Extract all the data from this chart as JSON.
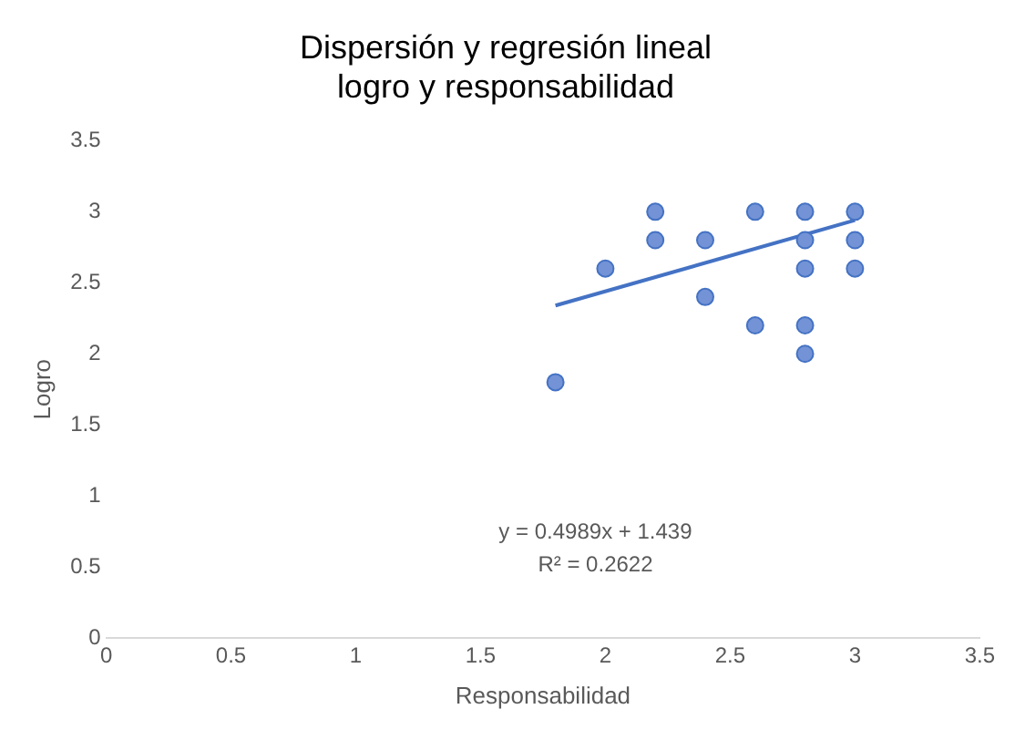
{
  "chart_data": {
    "type": "scatter",
    "title": "Dispersión y regresión lineal",
    "subtitle": "logro y responsabilidad",
    "xlabel": "Responsabilidad",
    "ylabel": "Logro",
    "series": [
      {
        "marker": "circle",
        "color": "#7393d6",
        "x": [
          1.8,
          2,
          2.2,
          2.2,
          2.4,
          2.4,
          2.6,
          2.6,
          2.8,
          2.8,
          2.8,
          2.8,
          2.8,
          3,
          3,
          3
        ],
        "values": [
          1.8,
          2.6,
          3,
          2.8,
          2.8,
          2.4,
          3,
          2.2,
          3,
          2.8,
          2.6,
          2.2,
          2,
          3,
          2.8,
          2.6
        ]
      },
      {
        "type": "line",
        "marker": "none",
        "line_style": "solid",
        "color": "#4472c4",
        "x": [
          1.8,
          3
        ],
        "values": [
          2.34,
          2.94
        ]
      }
    ],
    "xlim": [
      0,
      3.5
    ],
    "xticks": [
      0,
      0.5,
      1,
      1.5,
      2,
      2.5,
      3,
      3.5
    ],
    "ylim": [
      0,
      3.5
    ],
    "yticks": [
      0,
      0.5,
      1,
      1.5,
      2,
      2.5,
      3,
      3.5
    ],
    "grid": false,
    "legend": false,
    "annotations": [
      "y = 0.4989x + 1.439",
      "R² = 0.2622"
    ]
  }
}
